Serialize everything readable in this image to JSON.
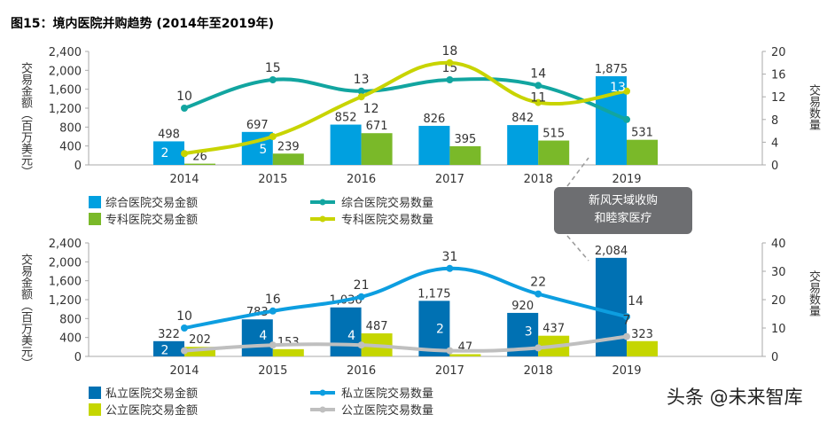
{
  "title": "图15：境内医院并购趋势 (2014年至2019年)",
  "watermark": "头条 @未来智库",
  "annotation": {
    "line1": "新风天域收购",
    "line2": "和睦家医疗"
  },
  "chart_data": [
    {
      "type": "bar+line",
      "categories": [
        "2014",
        "2015",
        "2016",
        "2017",
        "2018",
        "2019"
      ],
      "ylabel": "交易金额（百万美元）",
      "y2label": "交易数量",
      "ylim": [
        0,
        2400
      ],
      "yticks": [
        "0",
        "400",
        "800",
        "1,200",
        "1,600",
        "2,000",
        "2,400"
      ],
      "y2lim": [
        0,
        20
      ],
      "y2ticks": [
        "0",
        "4",
        "8",
        "12",
        "16",
        "20"
      ],
      "bars": [
        {
          "name": "综合医院交易金额",
          "color": "#00a0e0",
          "values": [
            498,
            697,
            852,
            826,
            842,
            1875
          ],
          "labels": [
            "498",
            "697",
            "852",
            "826",
            "842",
            "1,875"
          ]
        },
        {
          "name": "专科医院交易金额",
          "color": "#7ab929",
          "values": [
            26,
            239,
            671,
            395,
            515,
            531
          ],
          "labels": [
            "26",
            "239",
            "671",
            "395",
            "515",
            "531"
          ]
        }
      ],
      "lines": [
        {
          "name": "综合医院交易数量",
          "color": "#12a5a0",
          "values": [
            10,
            15,
            13,
            15,
            14,
            8
          ]
        },
        {
          "name": "专科医院交易数量",
          "color": "#c8d400",
          "values": [
            2,
            5,
            12,
            18,
            11,
            13
          ]
        }
      ],
      "legend": "bottom"
    },
    {
      "type": "bar+line",
      "categories": [
        "2014",
        "2015",
        "2016",
        "2017",
        "2018",
        "2019"
      ],
      "ylabel": "交易金额（百万美元）",
      "y2label": "交易数量",
      "ylim": [
        0,
        2400
      ],
      "yticks": [
        "0",
        "400",
        "800",
        "1,200",
        "1,600",
        "2,000",
        "2,400"
      ],
      "y2lim": [
        0,
        40
      ],
      "y2ticks": [
        "0",
        "10",
        "20",
        "30",
        "40"
      ],
      "bars": [
        {
          "name": "私立医院交易金额",
          "color": "#0071b3",
          "values": [
            322,
            783,
            1036,
            1175,
            920,
            2084
          ],
          "labels": [
            "322",
            "783",
            "1,036",
            "1,175",
            "920",
            "2,084"
          ]
        },
        {
          "name": "公立医院交易金额",
          "color": "#c5d600",
          "values": [
            202,
            153,
            487,
            47,
            437,
            323
          ],
          "labels": [
            "202",
            "153",
            "487",
            "47",
            "437",
            "323"
          ]
        }
      ],
      "lines": [
        {
          "name": "私立医院交易数量",
          "color": "#0d9ee0",
          "values": [
            10,
            16,
            21,
            31,
            22,
            14
          ]
        },
        {
          "name": "公立医院交易数量",
          "color": "#bfbfbf",
          "values": [
            2,
            4,
            4,
            2,
            3,
            7
          ]
        }
      ],
      "legend": "bottom"
    }
  ]
}
